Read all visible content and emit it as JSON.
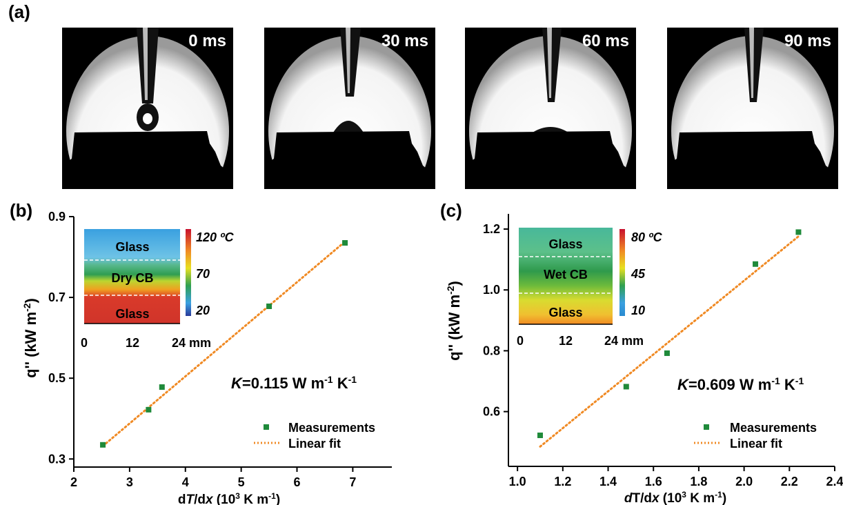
{
  "panel_labels": {
    "a": "(a)",
    "b": "(b)",
    "c": "(c)"
  },
  "photos": [
    {
      "time": "0 ms",
      "stage": "falling"
    },
    {
      "time": "30 ms",
      "stage": "impact"
    },
    {
      "time": "60 ms",
      "stage": "spreading"
    },
    {
      "time": "90 ms",
      "stage": "absorbed"
    }
  ],
  "colors": {
    "marker": "#1f8a3a",
    "fit": "#f08a24",
    "photo_bg": "#000000"
  },
  "chart_data": [
    {
      "type": "scatter",
      "panel": "b",
      "xlabel_parts": [
        "d",
        "T",
        "/d",
        "x",
        " (10",
        "3",
        " K m",
        "-1",
        ")"
      ],
      "ylabel": "q'' (kW m-2)",
      "xlim": [
        2,
        7.7
      ],
      "ylim": [
        0.28,
        0.9
      ],
      "xticks": [
        2,
        3,
        4,
        5,
        6,
        7
      ],
      "yticks": [
        0.3,
        0.5,
        0.7,
        0.9
      ],
      "ytick_labels": [
        "0.3",
        "0.5",
        "0.7",
        "0.9"
      ],
      "series": [
        {
          "name": "Measurements",
          "x": [
            2.52,
            3.34,
            3.58,
            5.5,
            6.86
          ],
          "y": [
            0.335,
            0.422,
            0.478,
            0.678,
            0.835
          ]
        },
        {
          "name": "Linear fit",
          "x": [
            2.52,
            6.86
          ],
          "y": [
            0.332,
            0.838
          ]
        }
      ],
      "annotation": {
        "K": "K",
        "text": "=0.115 W m",
        "sup1": "-1",
        "mid": " K",
        "sup2": "-1"
      },
      "legend": [
        "Measurements",
        "Linear fit"
      ],
      "inset": {
        "labels": [
          "Glass",
          "Dry CB",
          "Glass"
        ],
        "colorbar_ticks": [
          "120 ºC",
          "70",
          "20"
        ],
        "x_ticks": [
          "0",
          "12",
          "24 mm"
        ]
      }
    },
    {
      "type": "scatter",
      "panel": "c",
      "xlabel_parts": [
        "d",
        "T",
        "/d",
        "x",
        " (10",
        "3",
        " K m",
        "-1",
        ")"
      ],
      "ylabel": "q'' (kW m-2)",
      "xlim": [
        0.96,
        2.4
      ],
      "ylim": [
        0.42,
        1.25
      ],
      "xticks": [
        1.0,
        1.2,
        1.4,
        1.6,
        1.8,
        2.0,
        2.2,
        2.4
      ],
      "xtick_labels": [
        "1.0",
        "1.2",
        "1.4",
        "1.6",
        "1.8",
        "2.0",
        "2.2",
        "2.4"
      ],
      "yticks": [
        0.6,
        0.8,
        1.0,
        1.2
      ],
      "ytick_labels": [
        "0.6",
        "0.8",
        "1.0",
        "1.2"
      ],
      "series": [
        {
          "name": "Measurements",
          "x": [
            1.1,
            1.48,
            1.66,
            2.05,
            2.24
          ],
          "y": [
            0.522,
            0.682,
            0.792,
            1.085,
            1.19
          ]
        },
        {
          "name": "Linear fit",
          "x": [
            1.1,
            2.24
          ],
          "y": [
            0.485,
            1.176
          ]
        }
      ],
      "annotation": {
        "K": "K",
        "text": "=0.609 W m",
        "sup1": "-1",
        "mid": " K",
        "sup2": "-1"
      },
      "legend": [
        "Measurements",
        "Linear fit"
      ],
      "inset": {
        "labels": [
          "Glass",
          "Wet CB",
          "Glass"
        ],
        "colorbar_ticks": [
          "80 ºC",
          "45",
          "10"
        ],
        "x_ticks": [
          "0",
          "12",
          "24 mm"
        ]
      }
    }
  ]
}
